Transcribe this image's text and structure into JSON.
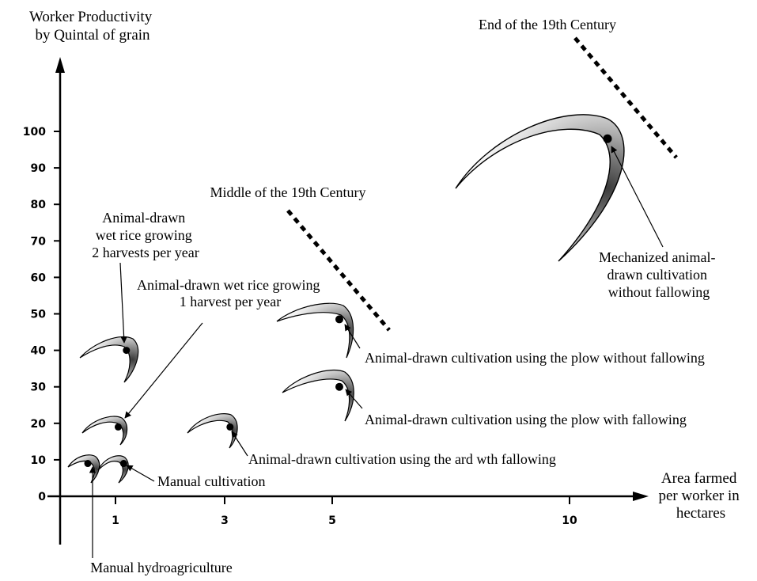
{
  "chart_data": {
    "type": "scatter",
    "ylabel": [
      "Worker Productivity",
      "by Quintal of grain"
    ],
    "xlabel": [
      "Area farmed",
      "per worker in",
      "hectares"
    ],
    "yticks": [
      0,
      10,
      20,
      30,
      40,
      50,
      60,
      70,
      80,
      90,
      100
    ],
    "xticks": [
      1,
      3,
      5,
      10
    ],
    "xlim": [
      0,
      12
    ],
    "ylim": [
      0,
      110
    ],
    "points": [
      {
        "label": [
          "Manual hydroagriculture"
        ],
        "x": 0.5,
        "y": 9
      },
      {
        "label": [
          "Manual cultivation"
        ],
        "x": 1.15,
        "y": 9
      },
      {
        "label": [
          "Animal-drawn wet rice growing",
          "1 harvest per year"
        ],
        "x": 1.05,
        "y": 19
      },
      {
        "label": [
          "Animal-drawn",
          "wet rice growing",
          "2 harvests per year"
        ],
        "x": 1.2,
        "y": 40
      },
      {
        "label": [
          "Animal-drawn cultivation using the ard wth fallowing"
        ],
        "x": 3.1,
        "y": 19
      },
      {
        "label": [
          "Animal-drawn cultivation using the plow with fallowing"
        ],
        "x": 5.15,
        "y": 30
      },
      {
        "label": [
          "Animal-drawn cultivation using the plow without fallowing"
        ],
        "x": 5.15,
        "y": 48.5
      },
      {
        "label": [
          "Mechanized animal-",
          "drawn cultivation",
          "without fallowing"
        ],
        "x": 10.8,
        "y": 98
      }
    ],
    "annotations": [
      {
        "text": "Middle of the 19th Century"
      },
      {
        "text": "End of the 19th Century"
      }
    ]
  }
}
